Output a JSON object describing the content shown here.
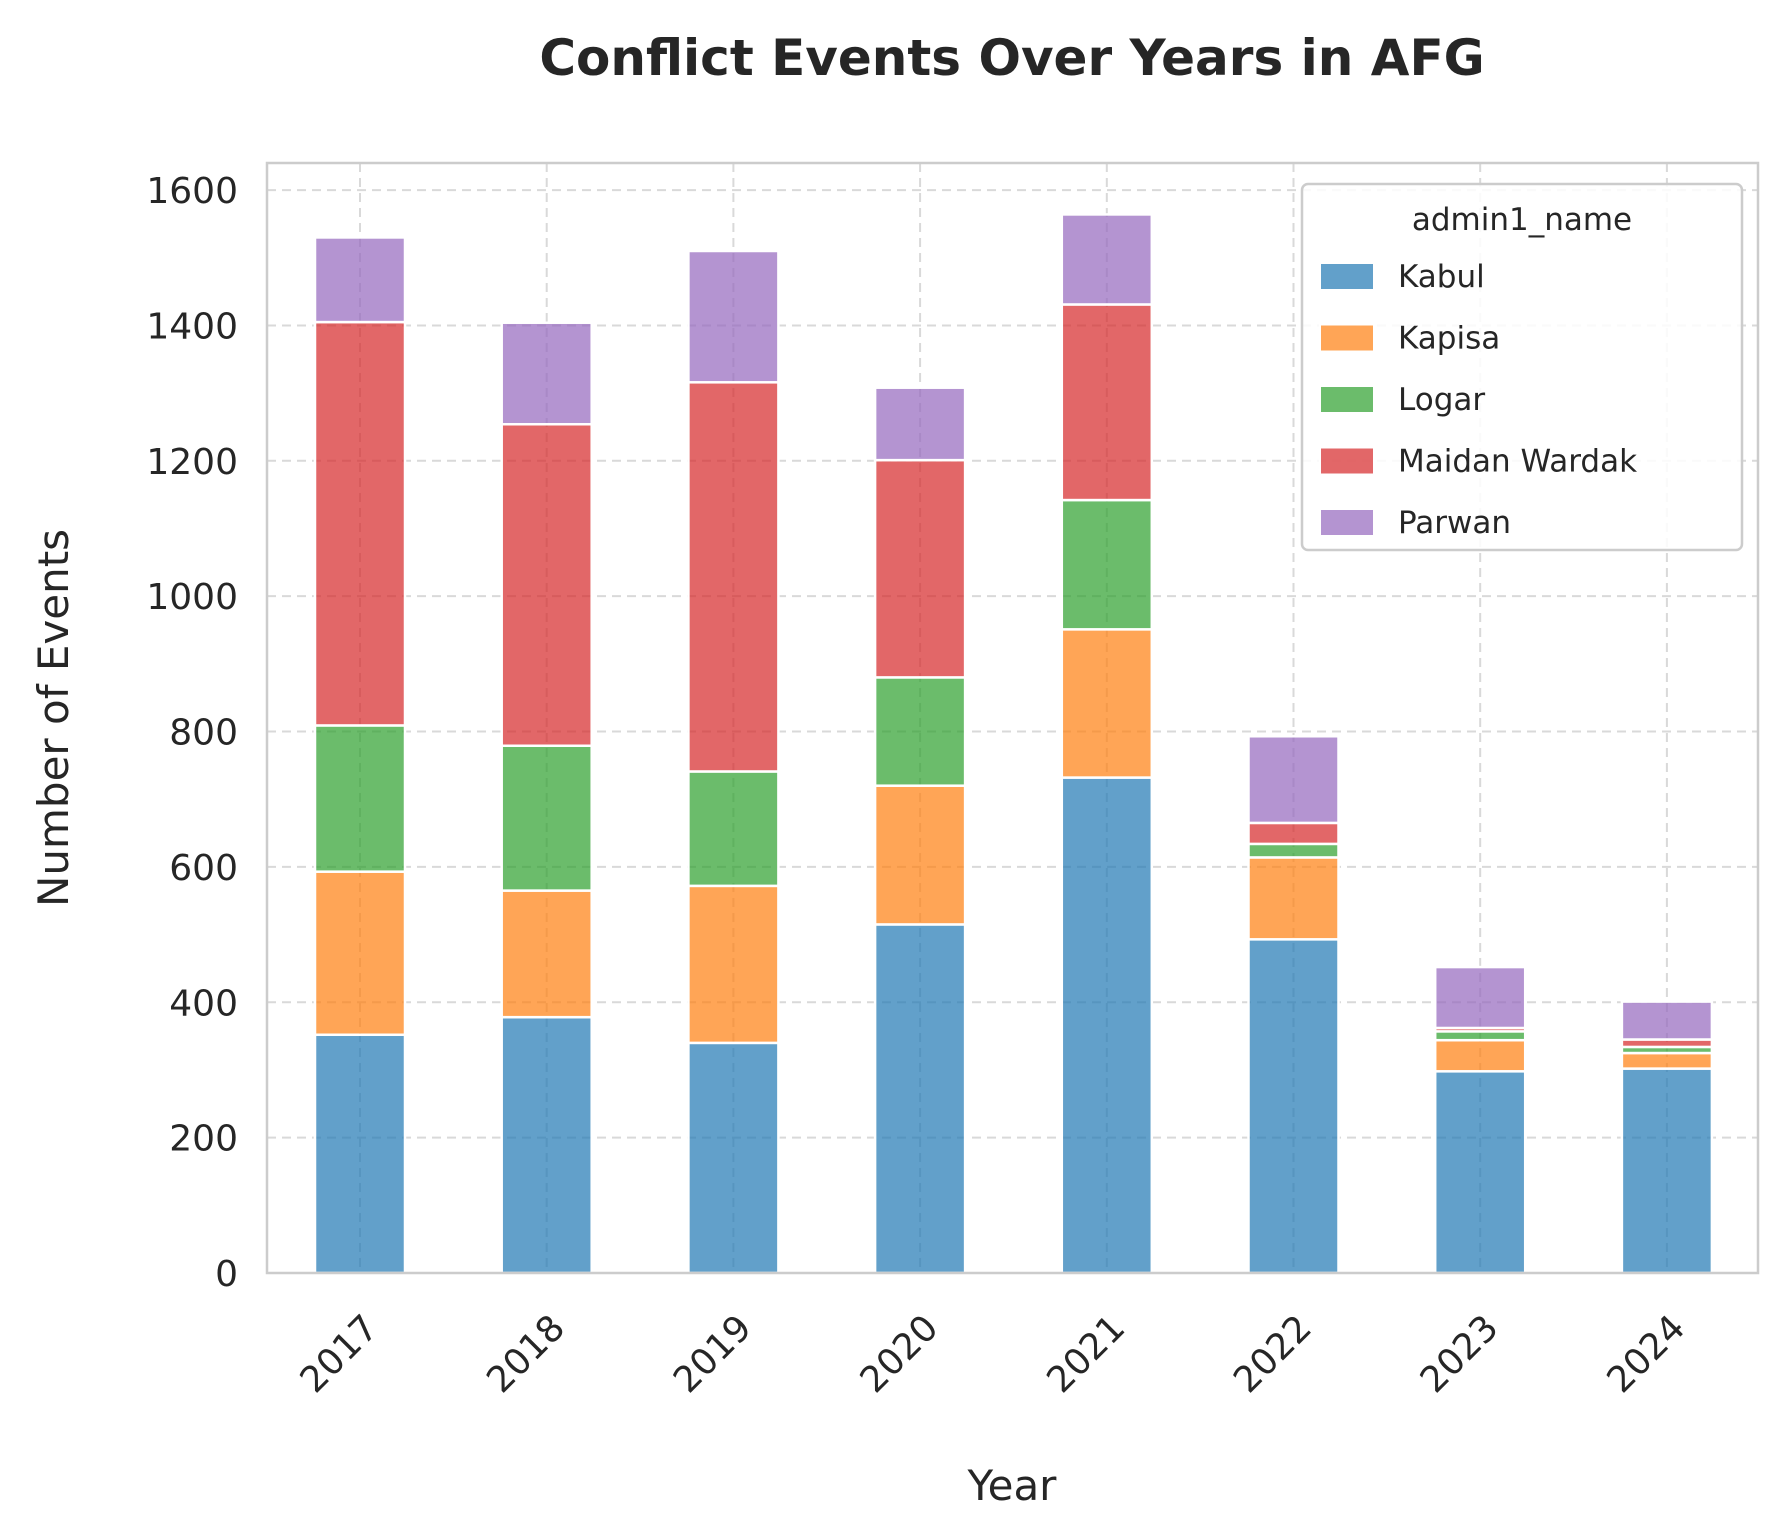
{
  "chart_data": {
    "type": "bar",
    "stacked": true,
    "title": "Conflict Events Over Years in AFG",
    "xlabel": "Year",
    "ylabel": "Number of Events",
    "categories": [
      "2017",
      "2018",
      "2019",
      "2020",
      "2021",
      "2022",
      "2023",
      "2024"
    ],
    "y_ticks": [
      "0",
      "200",
      "400",
      "600",
      "800",
      "1000",
      "1200",
      "1400",
      "1600"
    ],
    "ylim": [
      0,
      1640
    ],
    "grid": true,
    "legend": {
      "title": "admin1_name",
      "position": "top-right"
    },
    "series": [
      {
        "name": "Kabul",
        "color": "#1f77b4",
        "values": [
          352,
          378,
          340,
          515,
          732,
          493,
          298,
          302
        ]
      },
      {
        "name": "Kapisa",
        "color": "#ff7f0e",
        "values": [
          241,
          187,
          232,
          205,
          219,
          121,
          46,
          23
        ]
      },
      {
        "name": "Logar",
        "color": "#2ca02c",
        "values": [
          216,
          214,
          169,
          160,
          191,
          20,
          13,
          9
        ]
      },
      {
        "name": "Maidan Wardak",
        "color": "#d62728",
        "values": [
          596,
          475,
          575,
          321,
          289,
          31,
          5,
          11
        ]
      },
      {
        "name": "Parwan",
        "color": "#9467bd",
        "values": [
          125,
          150,
          194,
          107,
          133,
          128,
          90,
          56
        ]
      }
    ]
  }
}
